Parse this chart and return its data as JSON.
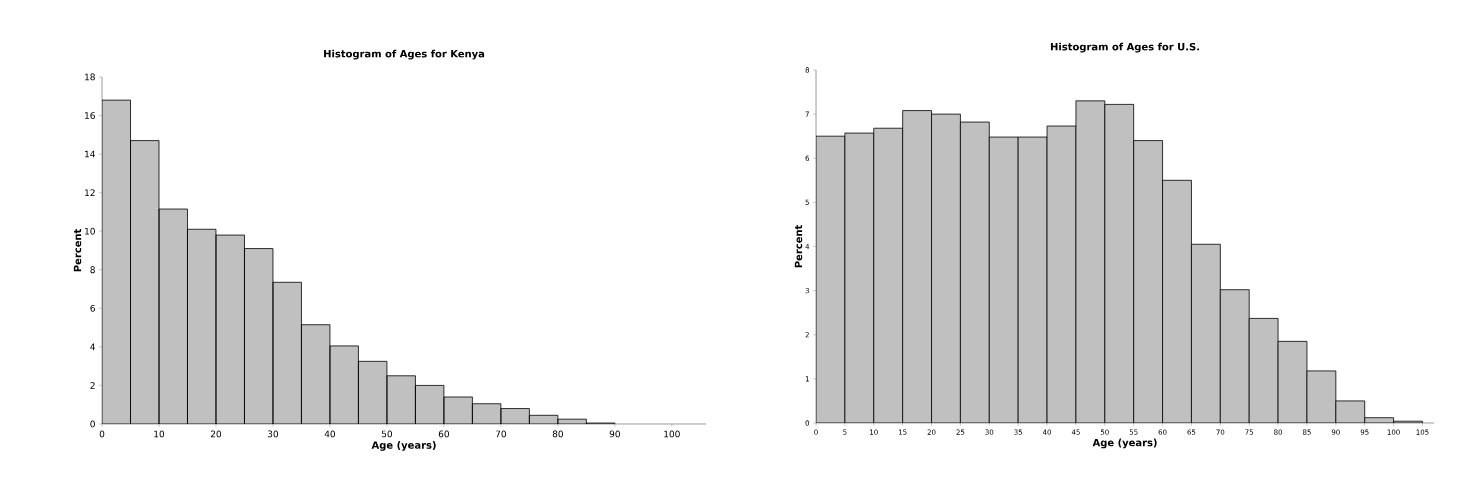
{
  "chart_data": [
    {
      "type": "histogram",
      "title": "Histogram of Ages for Kenya",
      "xlabel": "Age (years)",
      "ylabel": "Percent",
      "color": "#c0c0c0",
      "bins": [
        0,
        5,
        10,
        15,
        20,
        25,
        30,
        35,
        40,
        45,
        50,
        55,
        60,
        65,
        70,
        75,
        80,
        85,
        90
      ],
      "values": [
        16.8,
        14.7,
        11.15,
        10.1,
        9.8,
        9.1,
        7.35,
        5.15,
        4.05,
        3.25,
        2.5,
        2.0,
        1.4,
        1.05,
        0.8,
        0.45,
        0.25,
        0.05
      ],
      "xlim": [
        0,
        106
      ],
      "ylim": [
        0,
        18
      ],
      "xticks": [
        0,
        10,
        20,
        30,
        40,
        50,
        60,
        70,
        80,
        90,
        100
      ],
      "yticks": [
        0,
        2,
        4,
        6,
        8,
        10,
        12,
        14,
        16,
        18
      ]
    },
    {
      "type": "histogram",
      "title": "Histogram of Ages for U.S.",
      "xlabel": "Age (years)",
      "ylabel": "Percent",
      "color": "#c0c0c0",
      "bins": [
        0,
        5,
        10,
        15,
        20,
        25,
        30,
        35,
        40,
        45,
        50,
        55,
        60,
        65,
        70,
        75,
        80,
        85,
        90,
        95,
        100,
        105
      ],
      "values": [
        6.5,
        6.57,
        6.68,
        7.08,
        7.0,
        6.82,
        6.48,
        6.48,
        6.73,
        7.3,
        7.22,
        6.4,
        5.5,
        4.05,
        3.02,
        2.37,
        1.85,
        1.18,
        0.5,
        0.12,
        0.04
      ],
      "xlim": [
        0,
        107
      ],
      "ylim": [
        0,
        8
      ],
      "xticks": [
        0,
        5,
        10,
        15,
        20,
        25,
        30,
        35,
        40,
        45,
        50,
        55,
        60,
        65,
        70,
        75,
        80,
        85,
        90,
        95,
        100,
        105
      ],
      "yticks": [
        0,
        1,
        2,
        3,
        4,
        5,
        6,
        7,
        8
      ]
    }
  ]
}
